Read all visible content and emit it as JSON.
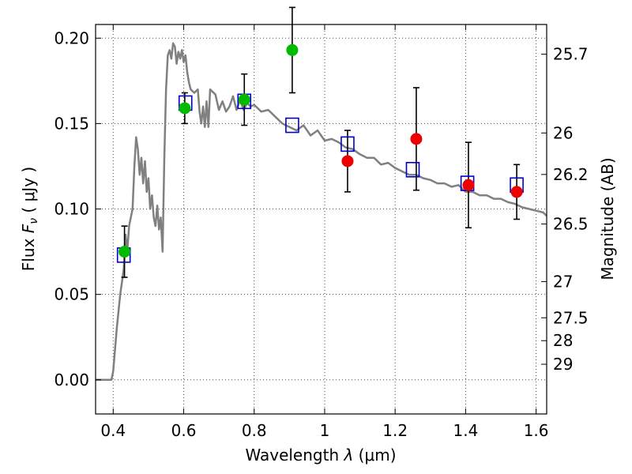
{
  "chart_data": {
    "type": "scatter",
    "xlabel": "Wavelength  λ (μm)",
    "ylabel": "Flux  F_ν  ( μJy )",
    "ylabel_parts": {
      "pre": "Flux  ",
      "symbol": "F",
      "sub": "ν",
      "post": "  ( μJy )"
    },
    "xlabel_parts": {
      "pre": "Wavelength  ",
      "symbol": "λ",
      "post": " (μm)"
    },
    "y2label": "Magnitude (AB)",
    "xlim": [
      0.35,
      1.63
    ],
    "ylim": [
      -0.02,
      0.208
    ],
    "grid": true,
    "x_ticks": [
      0.4,
      0.6,
      0.8,
      1.0,
      1.2,
      1.4,
      1.6
    ],
    "x_tick_labels": [
      "0.4",
      "0.6",
      "0.8",
      "1",
      "1.2",
      "1.4",
      "1.6"
    ],
    "y_ticks": [
      0.0,
      0.05,
      0.1,
      0.15,
      0.2
    ],
    "y_tick_labels": [
      "0.00",
      "0.05",
      "0.10",
      "0.15",
      "0.20"
    ],
    "y2_ticks": [
      {
        "label": "25.7",
        "flux": 0.1906
      },
      {
        "label": "26",
        "flux": 0.1445
      },
      {
        "label": "26.2",
        "flux": 0.1202
      },
      {
        "label": "26.5",
        "flux": 0.0912
      },
      {
        "label": "27",
        "flux": 0.0575
      },
      {
        "label": "27.5",
        "flux": 0.0363
      },
      {
        "label": "28",
        "flux": 0.0229
      },
      {
        "label": "29",
        "flux": 0.0091
      }
    ],
    "series": [
      {
        "kind": "line",
        "color": "#808080",
        "x": [
          0.35,
          0.395,
          0.4,
          0.41,
          0.42,
          0.43,
          0.435,
          0.44,
          0.445,
          0.45,
          0.455,
          0.46,
          0.465,
          0.47,
          0.475,
          0.48,
          0.485,
          0.49,
          0.495,
          0.5,
          0.505,
          0.51,
          0.515,
          0.52,
          0.525,
          0.53,
          0.535,
          0.54,
          0.545,
          0.55,
          0.555,
          0.56,
          0.565,
          0.57,
          0.575,
          0.58,
          0.585,
          0.59,
          0.595,
          0.6,
          0.605,
          0.61,
          0.615,
          0.62,
          0.63,
          0.64,
          0.645,
          0.65,
          0.655,
          0.66,
          0.665,
          0.67,
          0.675,
          0.68,
          0.69,
          0.7,
          0.71,
          0.72,
          0.73,
          0.74,
          0.75,
          0.76,
          0.77,
          0.78,
          0.79,
          0.8,
          0.82,
          0.84,
          0.86,
          0.88,
          0.9,
          0.92,
          0.94,
          0.96,
          0.98,
          1.0,
          1.02,
          1.04,
          1.06,
          1.08,
          1.1,
          1.12,
          1.14,
          1.16,
          1.18,
          1.2,
          1.22,
          1.24,
          1.26,
          1.28,
          1.3,
          1.32,
          1.34,
          1.36,
          1.38,
          1.4,
          1.42,
          1.44,
          1.46,
          1.48,
          1.5,
          1.52,
          1.54,
          1.56,
          1.58,
          1.6,
          1.62,
          1.63
        ],
        "y": [
          0.0,
          0.0,
          0.005,
          0.03,
          0.05,
          0.065,
          0.085,
          0.075,
          0.09,
          0.095,
          0.1,
          0.125,
          0.142,
          0.135,
          0.12,
          0.13,
          0.115,
          0.128,
          0.11,
          0.118,
          0.1,
          0.108,
          0.095,
          0.09,
          0.102,
          0.088,
          0.095,
          0.075,
          0.13,
          0.17,
          0.19,
          0.193,
          0.188,
          0.197,
          0.195,
          0.185,
          0.192,
          0.188,
          0.193,
          0.186,
          0.19,
          0.18,
          0.174,
          0.17,
          0.168,
          0.17,
          0.157,
          0.15,
          0.16,
          0.148,
          0.163,
          0.148,
          0.17,
          0.169,
          0.167,
          0.158,
          0.163,
          0.157,
          0.16,
          0.166,
          0.158,
          0.164,
          0.158,
          0.162,
          0.16,
          0.161,
          0.157,
          0.158,
          0.154,
          0.15,
          0.148,
          0.146,
          0.149,
          0.143,
          0.146,
          0.14,
          0.141,
          0.139,
          0.136,
          0.135,
          0.132,
          0.13,
          0.13,
          0.126,
          0.127,
          0.124,
          0.122,
          0.12,
          0.12,
          0.118,
          0.117,
          0.115,
          0.115,
          0.113,
          0.114,
          0.11,
          0.11,
          0.108,
          0.108,
          0.106,
          0.106,
          0.104,
          0.103,
          0.101,
          0.1,
          0.099,
          0.098,
          0.096
        ]
      },
      {
        "kind": "squares",
        "color": "#0000cc",
        "x": [
          0.43,
          0.605,
          0.772,
          0.908,
          1.065,
          1.25,
          1.405,
          1.545
        ],
        "y": [
          0.073,
          0.162,
          0.163,
          0.149,
          0.138,
          0.123,
          0.115,
          0.114
        ]
      },
      {
        "kind": "points",
        "color": "#00bb00",
        "x": [
          0.432,
          0.603,
          0.772,
          0.908
        ],
        "y": [
          0.075,
          0.159,
          0.164,
          0.193
        ],
        "err": [
          0.015,
          0.009,
          0.015,
          0.025
        ]
      },
      {
        "kind": "points",
        "color": "#ee0000",
        "x": [
          1.065,
          1.26,
          1.408,
          1.545
        ],
        "y": [
          0.128,
          0.141,
          0.114,
          0.11
        ],
        "err": [
          0.018,
          0.03,
          0.025,
          0.016
        ]
      }
    ]
  }
}
